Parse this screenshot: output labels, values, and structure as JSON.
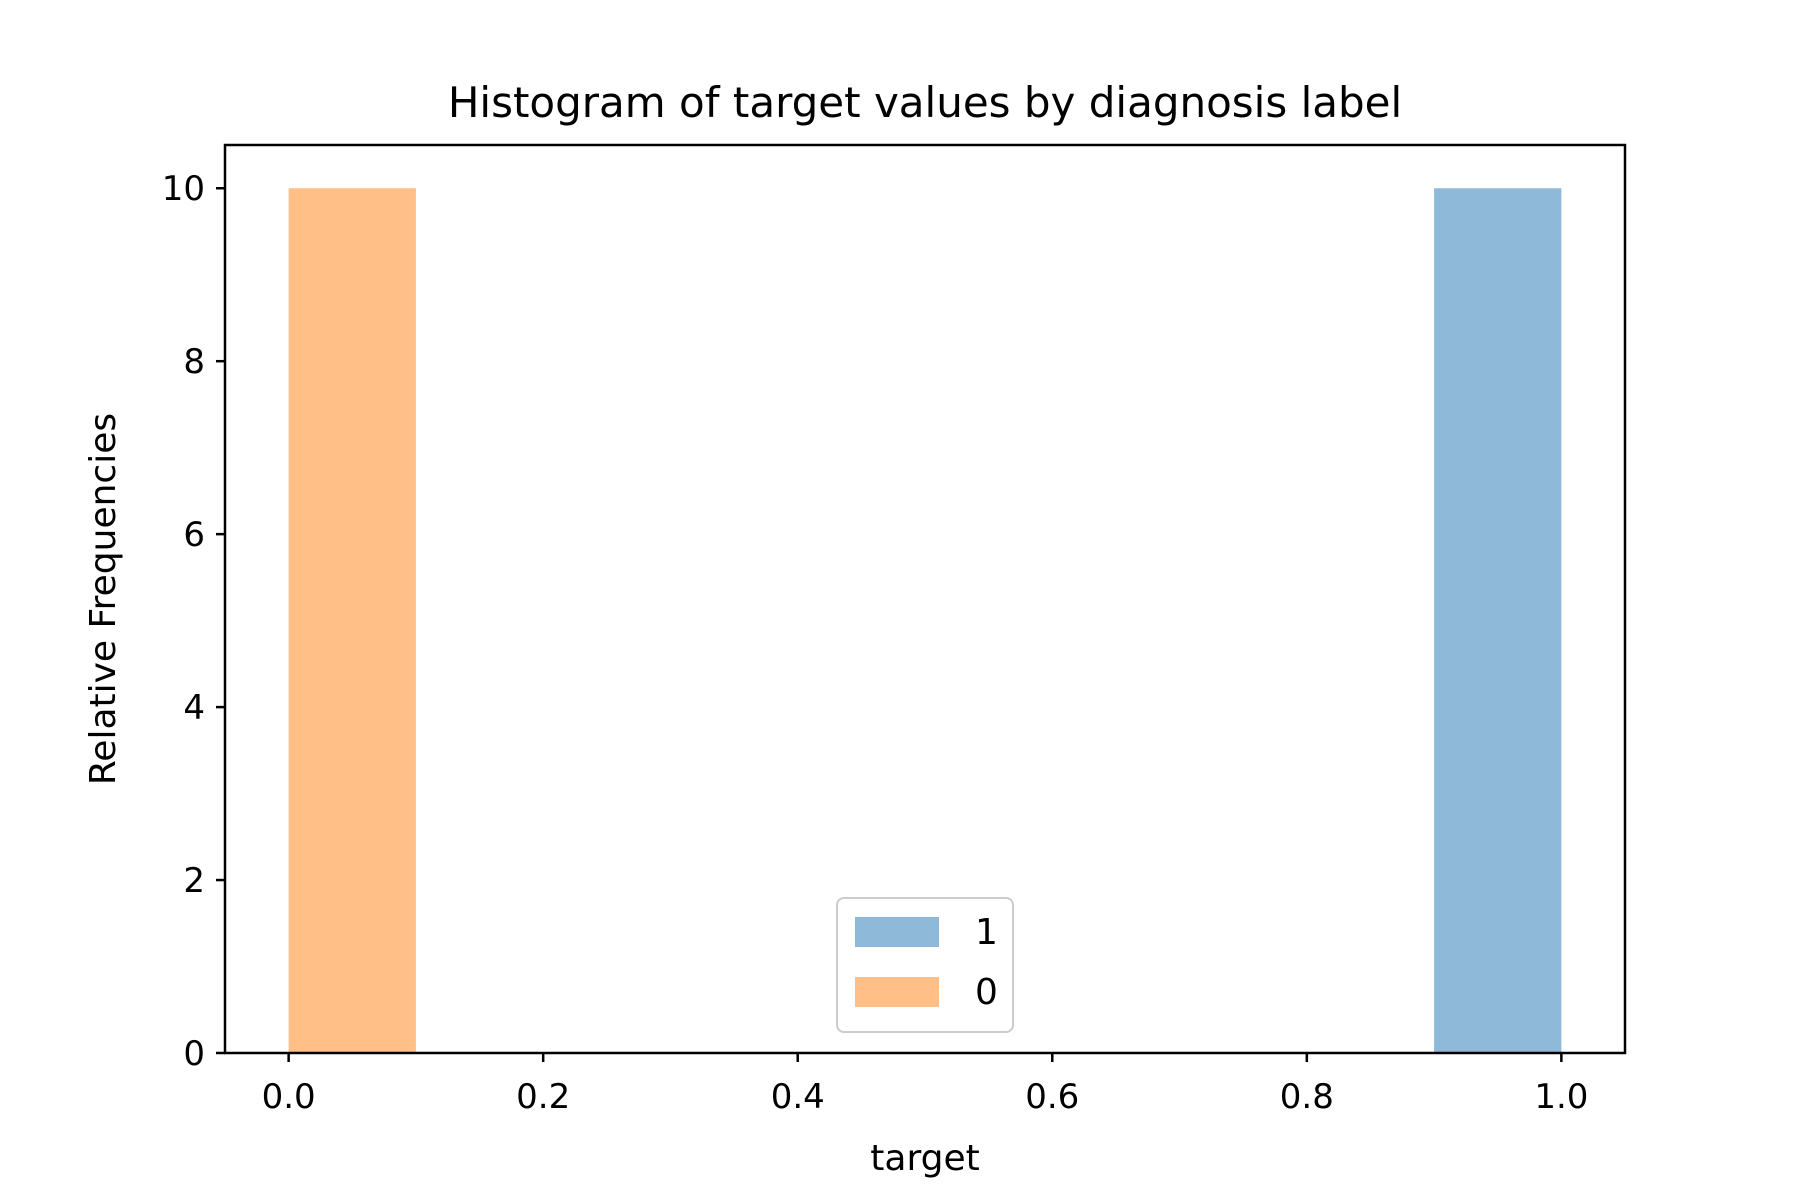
{
  "chart_data": {
    "type": "bar",
    "title": "Histogram of target values by diagnosis label",
    "xlabel": "target",
    "ylabel": "Relative Frequencies",
    "xlim": [
      -0.05,
      1.05
    ],
    "ylim": [
      0,
      10.5
    ],
    "xticks": [
      0.0,
      0.2,
      0.4,
      0.6,
      0.8,
      1.0
    ],
    "xtick_labels": [
      "0.0",
      "0.2",
      "0.4",
      "0.6",
      "0.8",
      "1.0"
    ],
    "yticks": [
      0,
      2,
      4,
      6,
      8,
      10
    ],
    "ytick_labels": [
      "0",
      "2",
      "4",
      "6",
      "8",
      "10"
    ],
    "grid": false,
    "legend_position": "lower-center",
    "series": [
      {
        "name": "1",
        "color": "#8fb9d9",
        "bins": [
          {
            "x0": 0.9,
            "x1": 1.0,
            "value": 10
          }
        ]
      },
      {
        "name": "0",
        "color": "#ffbf86",
        "bins": [
          {
            "x0": 0.0,
            "x1": 0.1,
            "value": 10
          }
        ]
      }
    ]
  }
}
